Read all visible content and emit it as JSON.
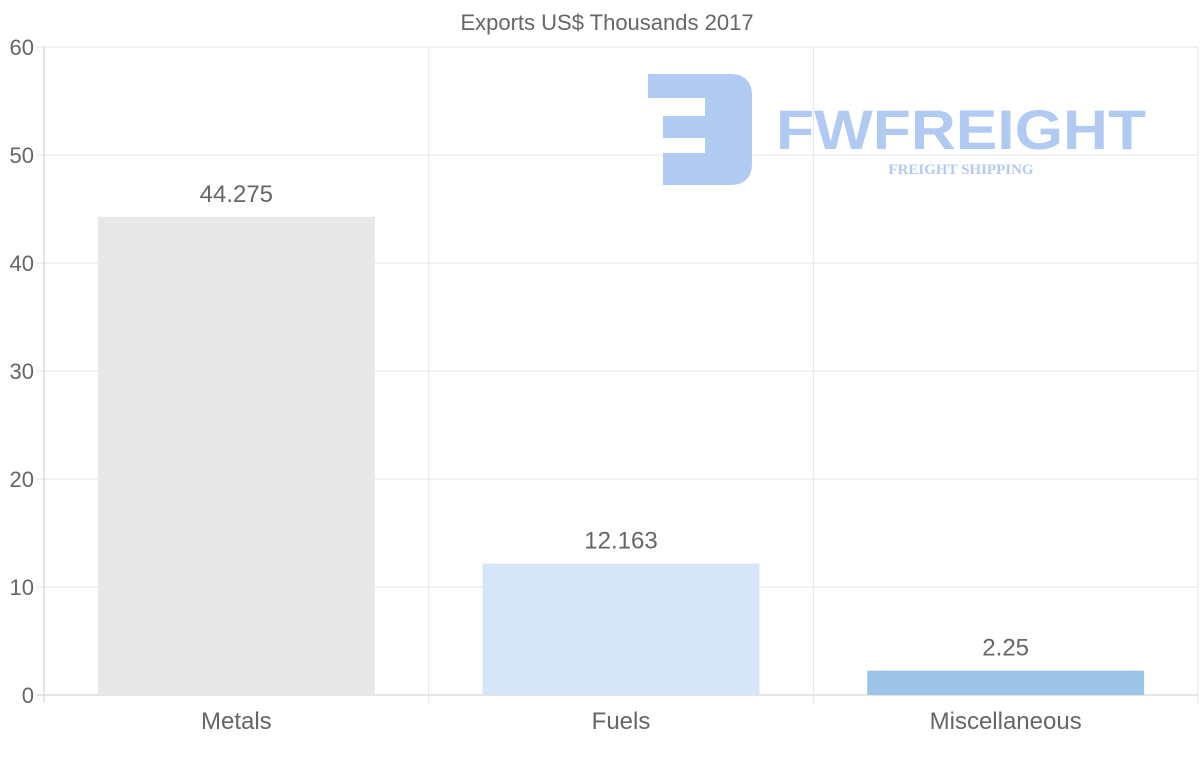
{
  "chart_data": {
    "type": "bar",
    "title": "Exports US$ Thousands 2017",
    "categories": [
      "Metals",
      "Fuels",
      "Miscellaneous"
    ],
    "values": [
      44.275,
      12.163,
      2.25
    ],
    "data_labels": [
      "44.275",
      "12.163",
      "2.25"
    ],
    "colors": [
      "#e8e8e8",
      "#d6e6f8",
      "#9dc3e6"
    ],
    "xlabel": "",
    "ylabel": "",
    "ylim": [
      0,
      60
    ],
    "yticks": [
      0,
      10,
      20,
      30,
      40,
      50,
      60
    ],
    "grid": true,
    "legend": "none"
  },
  "watermark": {
    "brand": "FWFREIGHT",
    "tagline": "FREIGHT SHIPPING",
    "color": "#adc8f2"
  }
}
